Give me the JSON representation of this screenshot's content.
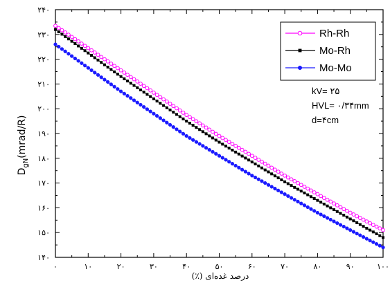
{
  "chart_data": {
    "type": "line",
    "title": "",
    "xlabel": "درصد غده‌ای (٪)",
    "ylabel_main": "D",
    "ylabel_sub": "gN",
    "ylabel_unit": "(mrad/R)",
    "xlim": [
      0,
      100
    ],
    "ylim": [
      140,
      240
    ],
    "x_ticks": [
      {
        "value": 0,
        "label": "۰"
      },
      {
        "value": 10,
        "label": "۱۰"
      },
      {
        "value": 20,
        "label": "۲۰"
      },
      {
        "value": 30,
        "label": "۳۰"
      },
      {
        "value": 40,
        "label": "۴۰"
      },
      {
        "value": 50,
        "label": "۵۰"
      },
      {
        "value": 60,
        "label": "۶۰"
      },
      {
        "value": 70,
        "label": "۷۰"
      },
      {
        "value": 80,
        "label": "۸۰"
      },
      {
        "value": 90,
        "label": "۹۰"
      },
      {
        "value": 100,
        "label": "۱۰۰"
      }
    ],
    "y_ticks": [
      {
        "value": 140,
        "label": "۱۴۰"
      },
      {
        "value": 150,
        "label": "۱۵۰"
      },
      {
        "value": 160,
        "label": "۱۶۰"
      },
      {
        "value": 170,
        "label": "۱۷۰"
      },
      {
        "value": 180,
        "label": "۱۸۰"
      },
      {
        "value": 190,
        "label": "۱۹۰"
      },
      {
        "value": 200,
        "label": "۲۰۰"
      },
      {
        "value": 210,
        "label": "۲۱۰"
      },
      {
        "value": 220,
        "label": "۲۲۰"
      },
      {
        "value": 230,
        "label": "۲۳۰"
      },
      {
        "value": 240,
        "label": "۲۴۰"
      }
    ],
    "grid": false,
    "legend_position": "top-right",
    "series": [
      {
        "name": "Rh-Rh",
        "color": "#ff00ff",
        "marker": "open-circle",
        "x": [
          0,
          10,
          20,
          30,
          40,
          50,
          60,
          70,
          80,
          90,
          100
        ],
        "values": [
          233.5,
          224.5,
          215.5,
          206.5,
          197.5,
          189,
          181,
          173,
          165.5,
          158,
          151
        ]
      },
      {
        "name": "Mo-Rh",
        "color": "#000000",
        "marker": "square",
        "x": [
          0,
          10,
          20,
          30,
          40,
          50,
          60,
          70,
          80,
          90,
          100
        ],
        "values": [
          232,
          222.5,
          213,
          204,
          195,
          186.5,
          178.5,
          170.5,
          163,
          155.5,
          148
        ]
      },
      {
        "name": "Mo-Mo",
        "color": "#1a1aff",
        "marker": "filled-circle",
        "x": [
          0,
          10,
          20,
          30,
          40,
          50,
          60,
          70,
          80,
          90,
          100
        ],
        "values": [
          226,
          216.5,
          207,
          198,
          189,
          181,
          173,
          165.5,
          158,
          151,
          144
        ]
      }
    ],
    "annotations": [
      "kV= ۲۵",
      "HVL= ۰/۳۴mm",
      "d=۴cm"
    ]
  }
}
